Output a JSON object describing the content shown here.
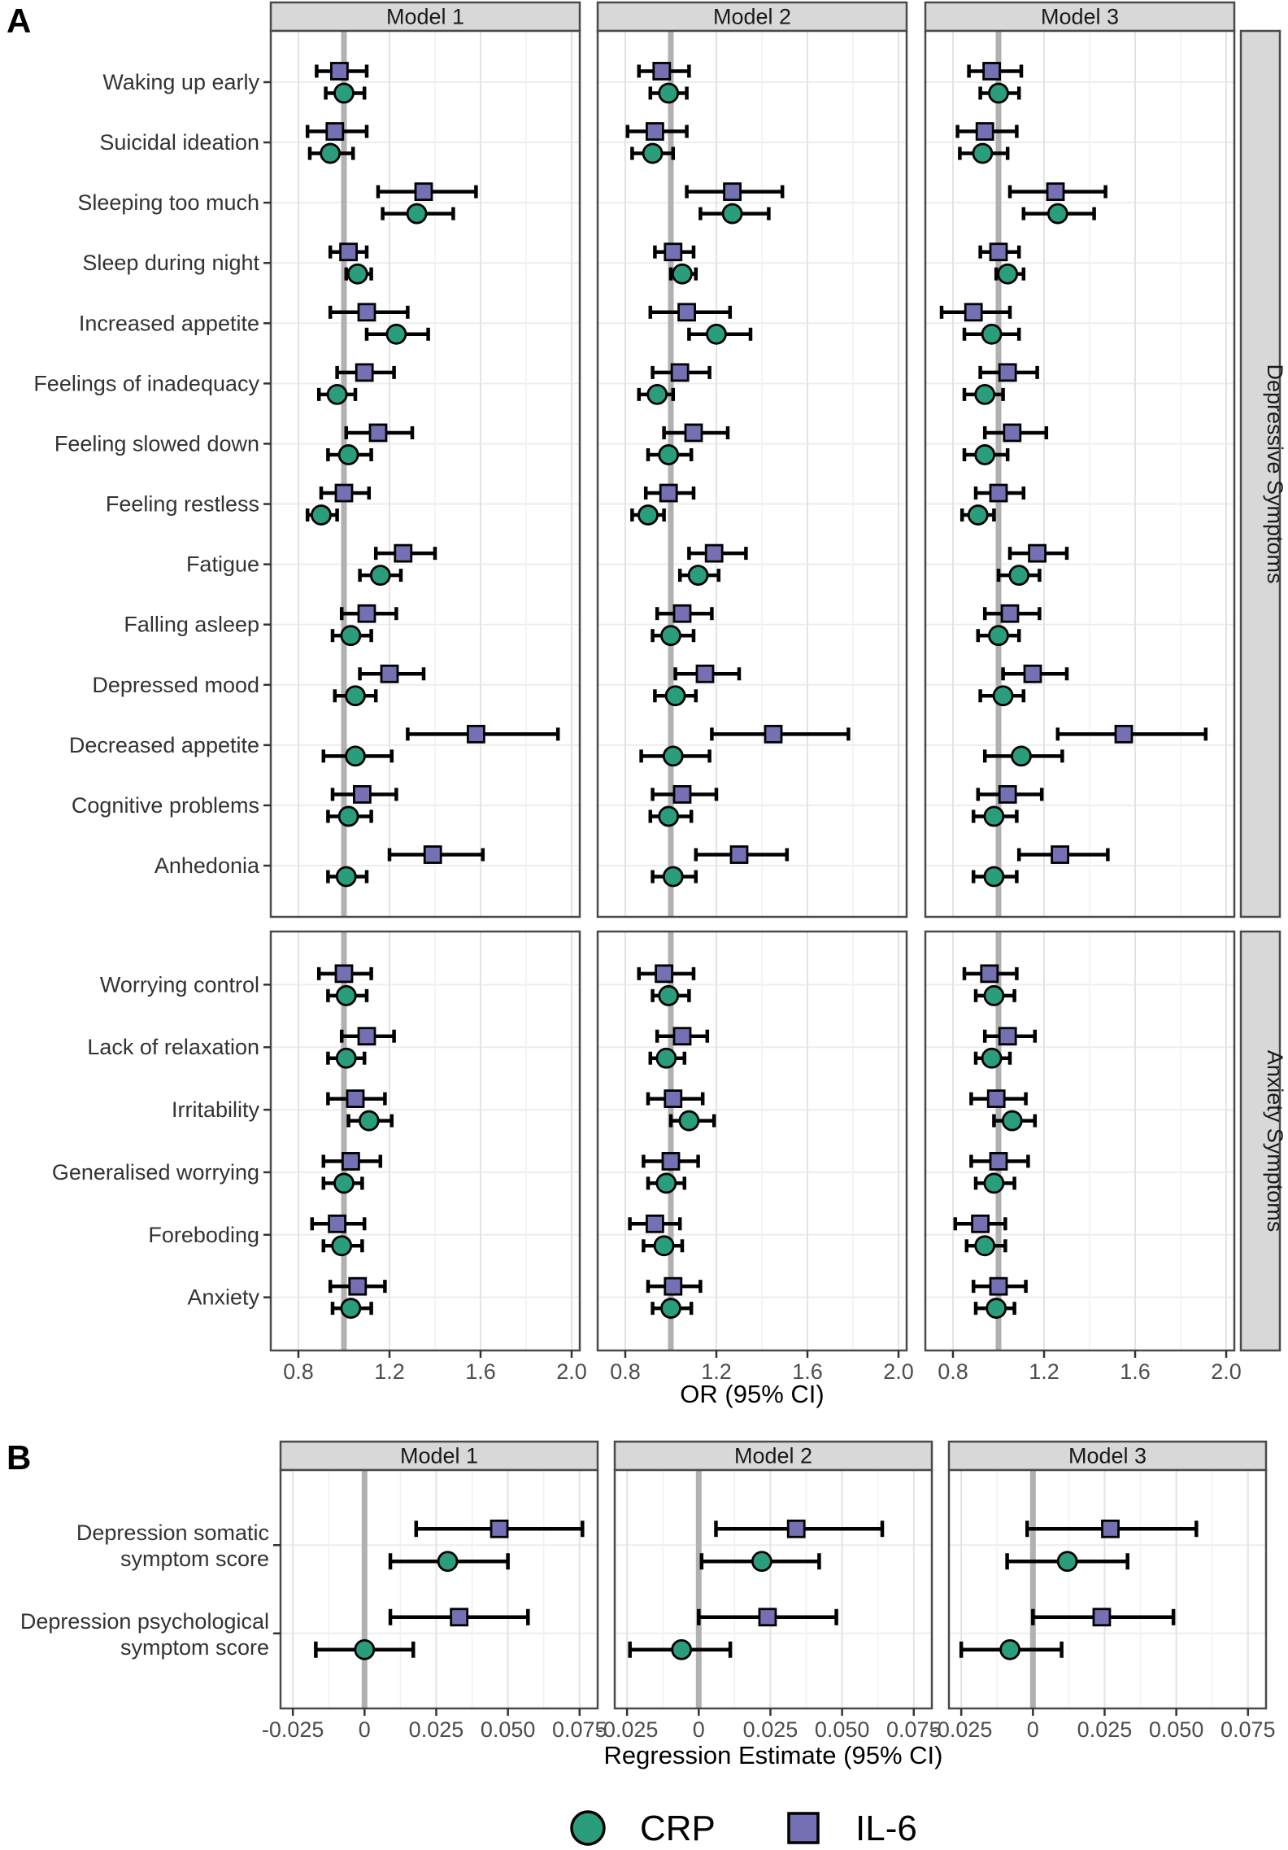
{
  "figure": {
    "panel_a_label": "A",
    "panel_b_label": "B",
    "legend": {
      "crp": "CRP",
      "il6": "IL-6"
    },
    "colors": {
      "crp": "#2A9D7C",
      "il6": "#7570B3",
      "error_bar": "#000000",
      "reference_line": "#B1B1B1",
      "strip_bg": "#D8D8D8",
      "panel_border": "#4A4A4A",
      "grid_major": "#E3E3E3",
      "grid_minor": "#F1F1F1",
      "axis_text": "#4D4D4D",
      "label_text": "#333333"
    }
  },
  "chart_data": [
    {
      "type": "forest",
      "panel": "A",
      "facets": [
        "Model 1",
        "Model 2",
        "Model 3"
      ],
      "xlabel": "OR (95% CI)",
      "x_ticks": [
        0.8,
        1.2,
        1.6,
        2.0
      ],
      "x_tick_labels": [
        "0.8",
        "1.2",
        "1.6",
        "2.0"
      ],
      "x_minor_ticks": [
        1.0,
        1.4,
        1.8
      ],
      "x_domain": [
        0.6786,
        2.0357
      ],
      "reference_x": 1.0,
      "series": [
        "CRP",
        "IL-6"
      ],
      "row_groups": [
        {
          "group": "Depressive Symptoms",
          "rows": [
            {
              "label": "Waking up early",
              "il6": [
                [
                  0.98,
                  0.88,
                  1.1
                ],
                [
                  0.96,
                  0.86,
                  1.08
                ],
                [
                  0.97,
                  0.87,
                  1.1
                ]
              ],
              "crp": [
                [
                  1.0,
                  0.92,
                  1.09
                ],
                [
                  0.99,
                  0.91,
                  1.07
                ],
                [
                  1.0,
                  0.92,
                  1.09
                ]
              ]
            },
            {
              "label": "Suicidal ideation",
              "il6": [
                [
                  0.96,
                  0.84,
                  1.1
                ],
                [
                  0.93,
                  0.81,
                  1.07
                ],
                [
                  0.94,
                  0.82,
                  1.08
                ]
              ],
              "crp": [
                [
                  0.94,
                  0.85,
                  1.04
                ],
                [
                  0.92,
                  0.83,
                  1.01
                ],
                [
                  0.93,
                  0.83,
                  1.04
                ]
              ]
            },
            {
              "label": "Sleeping too much",
              "il6": [
                [
                  1.35,
                  1.15,
                  1.58
                ],
                [
                  1.27,
                  1.07,
                  1.49
                ],
                [
                  1.25,
                  1.05,
                  1.47
                ]
              ],
              "crp": [
                [
                  1.32,
                  1.17,
                  1.48
                ],
                [
                  1.27,
                  1.13,
                  1.43
                ],
                [
                  1.26,
                  1.11,
                  1.42
                ]
              ]
            },
            {
              "label": "Sleep during night",
              "il6": [
                [
                  1.02,
                  0.94,
                  1.1
                ],
                [
                  1.01,
                  0.93,
                  1.1
                ],
                [
                  1.0,
                  0.92,
                  1.09
                ]
              ],
              "crp": [
                [
                  1.06,
                  1.01,
                  1.12
                ],
                [
                  1.05,
                  1.0,
                  1.11
                ],
                [
                  1.04,
                  0.99,
                  1.11
                ]
              ]
            },
            {
              "label": "Increased appetite",
              "il6": [
                [
                  1.1,
                  0.94,
                  1.28
                ],
                [
                  1.07,
                  0.91,
                  1.26
                ],
                [
                  0.89,
                  0.75,
                  1.05
                ]
              ],
              "crp": [
                [
                  1.23,
                  1.1,
                  1.37
                ],
                [
                  1.2,
                  1.08,
                  1.35
                ],
                [
                  0.97,
                  0.85,
                  1.09
                ]
              ]
            },
            {
              "label": "Feelings of inadequacy",
              "il6": [
                [
                  1.09,
                  0.97,
                  1.22
                ],
                [
                  1.04,
                  0.92,
                  1.17
                ],
                [
                  1.04,
                  0.92,
                  1.17
                ]
              ],
              "crp": [
                [
                  0.97,
                  0.89,
                  1.05
                ],
                [
                  0.94,
                  0.86,
                  1.01
                ],
                [
                  0.94,
                  0.85,
                  1.02
                ]
              ]
            },
            {
              "label": "Feeling slowed down",
              "il6": [
                [
                  1.15,
                  1.01,
                  1.3
                ],
                [
                  1.1,
                  0.97,
                  1.25
                ],
                [
                  1.06,
                  0.94,
                  1.21
                ]
              ],
              "crp": [
                [
                  1.02,
                  0.93,
                  1.12
                ],
                [
                  0.99,
                  0.9,
                  1.09
                ],
                [
                  0.94,
                  0.85,
                  1.04
                ]
              ]
            },
            {
              "label": "Feeling restless",
              "il6": [
                [
                  1.0,
                  0.9,
                  1.11
                ],
                [
                  0.99,
                  0.89,
                  1.1
                ],
                [
                  1.0,
                  0.9,
                  1.11
                ]
              ],
              "crp": [
                [
                  0.9,
                  0.84,
                  0.97
                ],
                [
                  0.9,
                  0.83,
                  0.97
                ],
                [
                  0.91,
                  0.84,
                  0.98
                ]
              ]
            },
            {
              "label": "Fatigue",
              "il6": [
                [
                  1.26,
                  1.14,
                  1.4
                ],
                [
                  1.19,
                  1.08,
                  1.33
                ],
                [
                  1.17,
                  1.05,
                  1.3
                ]
              ],
              "crp": [
                [
                  1.16,
                  1.07,
                  1.25
                ],
                [
                  1.12,
                  1.04,
                  1.21
                ],
                [
                  1.09,
                  1.0,
                  1.18
                ]
              ]
            },
            {
              "label": "Falling asleep",
              "il6": [
                [
                  1.1,
                  0.99,
                  1.23
                ],
                [
                  1.05,
                  0.94,
                  1.18
                ],
                [
                  1.05,
                  0.94,
                  1.18
                ]
              ],
              "crp": [
                [
                  1.03,
                  0.95,
                  1.12
                ],
                [
                  1.0,
                  0.92,
                  1.1
                ],
                [
                  1.0,
                  0.91,
                  1.09
                ]
              ]
            },
            {
              "label": "Depressed mood",
              "il6": [
                [
                  1.2,
                  1.07,
                  1.35
                ],
                [
                  1.15,
                  1.02,
                  1.3
                ],
                [
                  1.15,
                  1.02,
                  1.3
                ]
              ],
              "crp": [
                [
                  1.05,
                  0.96,
                  1.14
                ],
                [
                  1.02,
                  0.93,
                  1.11
                ],
                [
                  1.02,
                  0.92,
                  1.11
                ]
              ]
            },
            {
              "label": "Decreased appetite",
              "il6": [
                [
                  1.58,
                  1.28,
                  1.94
                ],
                [
                  1.45,
                  1.18,
                  1.78
                ],
                [
                  1.55,
                  1.26,
                  1.91
                ]
              ],
              "crp": [
                [
                  1.05,
                  0.91,
                  1.21
                ],
                [
                  1.01,
                  0.87,
                  1.17
                ],
                [
                  1.1,
                  0.94,
                  1.28
                ]
              ]
            },
            {
              "label": "Cognitive problems",
              "il6": [
                [
                  1.08,
                  0.95,
                  1.23
                ],
                [
                  1.05,
                  0.92,
                  1.2
                ],
                [
                  1.04,
                  0.91,
                  1.19
                ]
              ],
              "crp": [
                [
                  1.02,
                  0.93,
                  1.12
                ],
                [
                  0.99,
                  0.91,
                  1.09
                ],
                [
                  0.98,
                  0.89,
                  1.08
                ]
              ]
            },
            {
              "label": "Anhedonia",
              "il6": [
                [
                  1.39,
                  1.2,
                  1.61
                ],
                [
                  1.3,
                  1.11,
                  1.51
                ],
                [
                  1.27,
                  1.09,
                  1.48
                ]
              ],
              "crp": [
                [
                  1.01,
                  0.93,
                  1.1
                ],
                [
                  1.01,
                  0.92,
                  1.11
                ],
                [
                  0.98,
                  0.89,
                  1.08
                ]
              ]
            }
          ]
        },
        {
          "group": "Anxiety Symptoms",
          "rows": [
            {
              "label": "Worrying control",
              "il6": [
                [
                  1.0,
                  0.89,
                  1.12
                ],
                [
                  0.97,
                  0.86,
                  1.1
                ],
                [
                  0.96,
                  0.85,
                  1.08
                ]
              ],
              "crp": [
                [
                  1.01,
                  0.93,
                  1.1
                ],
                [
                  0.99,
                  0.92,
                  1.08
                ],
                [
                  0.98,
                  0.9,
                  1.07
                ]
              ]
            },
            {
              "label": "Lack of relaxation",
              "il6": [
                [
                  1.1,
                  0.99,
                  1.22
                ],
                [
                  1.05,
                  0.94,
                  1.16
                ],
                [
                  1.04,
                  0.94,
                  1.16
                ]
              ],
              "crp": [
                [
                  1.01,
                  0.93,
                  1.09
                ],
                [
                  0.98,
                  0.91,
                  1.06
                ],
                [
                  0.97,
                  0.9,
                  1.05
                ]
              ]
            },
            {
              "label": "Irritability",
              "il6": [
                [
                  1.05,
                  0.93,
                  1.18
                ],
                [
                  1.01,
                  0.9,
                  1.14
                ],
                [
                  0.99,
                  0.88,
                  1.12
                ]
              ],
              "crp": [
                [
                  1.11,
                  1.02,
                  1.21
                ],
                [
                  1.08,
                  1.0,
                  1.19
                ],
                [
                  1.06,
                  0.98,
                  1.16
                ]
              ]
            },
            {
              "label": "Generalised worrying",
              "il6": [
                [
                  1.03,
                  0.91,
                  1.16
                ],
                [
                  1.0,
                  0.88,
                  1.12
                ],
                [
                  1.0,
                  0.88,
                  1.13
                ]
              ],
              "crp": [
                [
                  1.0,
                  0.91,
                  1.08
                ],
                [
                  0.98,
                  0.9,
                  1.06
                ],
                [
                  0.98,
                  0.9,
                  1.07
                ]
              ]
            },
            {
              "label": "Foreboding",
              "il6": [
                [
                  0.97,
                  0.86,
                  1.09
                ],
                [
                  0.93,
                  0.82,
                  1.04
                ],
                [
                  0.92,
                  0.81,
                  1.03
                ]
              ],
              "crp": [
                [
                  0.99,
                  0.91,
                  1.08
                ],
                [
                  0.97,
                  0.88,
                  1.05
                ],
                [
                  0.94,
                  0.86,
                  1.03
                ]
              ]
            },
            {
              "label": "Anxiety",
              "il6": [
                [
                  1.06,
                  0.94,
                  1.18
                ],
                [
                  1.01,
                  0.9,
                  1.13
                ],
                [
                  1.0,
                  0.89,
                  1.12
                ]
              ],
              "crp": [
                [
                  1.03,
                  0.95,
                  1.12
                ],
                [
                  1.0,
                  0.92,
                  1.09
                ],
                [
                  0.99,
                  0.9,
                  1.07
                ]
              ]
            }
          ]
        }
      ]
    },
    {
      "type": "forest",
      "panel": "B",
      "facets": [
        "Model 1",
        "Model 2",
        "Model 3"
      ],
      "xlabel": "Regression Estimate (95% CI)",
      "x_ticks": [
        -0.025,
        0,
        0.025,
        0.05,
        0.075
      ],
      "x_tick_labels": [
        "-0.025",
        "0",
        "0.025",
        "0.050",
        "0.075"
      ],
      "x_minor_ticks": [
        -0.0125,
        0.0125,
        0.0375,
        0.0625
      ],
      "x_domain": [
        -0.0293,
        0.0813
      ],
      "reference_x": 0,
      "series": [
        "CRP",
        "IL-6"
      ],
      "row_groups": [
        {
          "group": "",
          "rows": [
            {
              "label": "Depression somatic symptom score",
              "label_lines": [
                "Depression somatic",
                "symptom score"
              ],
              "il6": [
                [
                  0.047,
                  0.018,
                  0.076
                ],
                [
                  0.034,
                  0.006,
                  0.064
                ],
                [
                  0.027,
                  -0.002,
                  0.057
                ]
              ],
              "crp": [
                [
                  0.029,
                  0.009,
                  0.05
                ],
                [
                  0.022,
                  0.001,
                  0.042
                ],
                [
                  0.012,
                  -0.009,
                  0.033
                ]
              ]
            },
            {
              "label": "Depression psychological symptom score",
              "label_lines": [
                "Depression psychological",
                "symptom score"
              ],
              "il6": [
                [
                  0.033,
                  0.009,
                  0.057
                ],
                [
                  0.024,
                  0.0,
                  0.048
                ],
                [
                  0.024,
                  0.0,
                  0.049
                ]
              ],
              "crp": [
                [
                  0.0,
                  -0.017,
                  0.017
                ],
                [
                  -0.006,
                  -0.024,
                  0.011
                ],
                [
                  -0.008,
                  -0.025,
                  0.01
                ]
              ]
            }
          ]
        }
      ]
    }
  ]
}
